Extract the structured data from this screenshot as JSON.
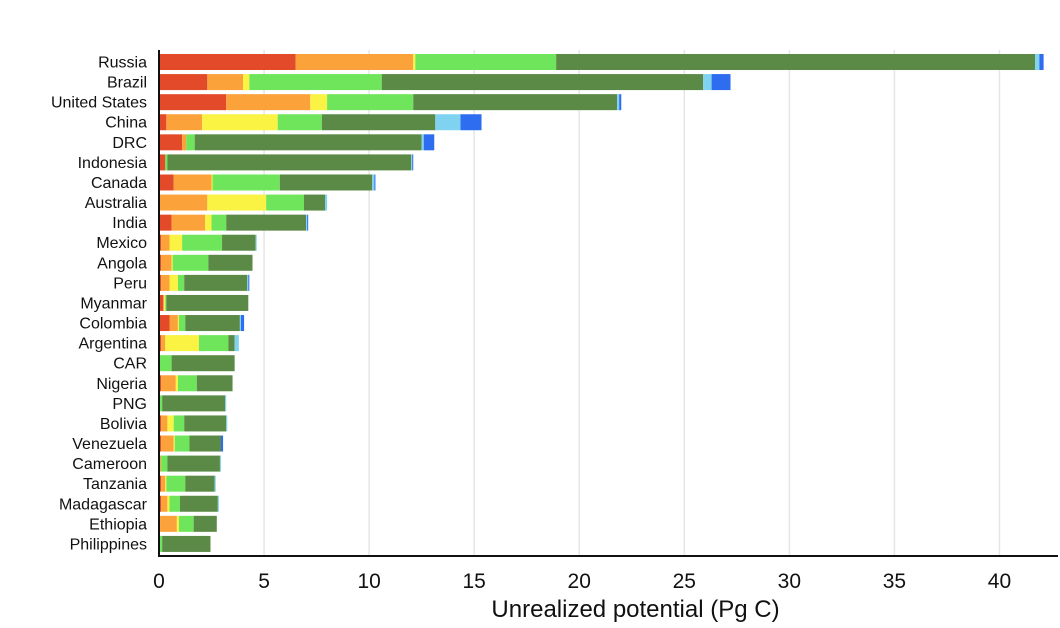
{
  "chart_data": {
    "type": "bar",
    "orientation": "horizontal",
    "stacked": true,
    "title": "",
    "xlabel": "Unrealized potential (Pg C)",
    "ylabel": "",
    "xlim": [
      0,
      42.5
    ],
    "x_ticks": [
      0,
      5,
      10,
      15,
      20,
      25,
      30,
      35,
      40
    ],
    "x_tick_labels": [
      "0",
      "5",
      "10",
      "15",
      "20",
      "25",
      "30",
      "35",
      "40"
    ],
    "grid": "vertical",
    "legend": "none",
    "categories": [
      "Russia",
      "Brazil",
      "United States",
      "China",
      "DRC",
      "Indonesia",
      "Canada",
      "Australia",
      "India",
      "Mexico",
      "Angola",
      "Peru",
      "Myanmar",
      "Colombia",
      "Argentina",
      "CAR",
      "Nigeria",
      "PNG",
      "Bolivia",
      "Venezuela",
      "Cameroon",
      "Tanzania",
      "Madagascar",
      "Ethiopia",
      "Philippines"
    ],
    "series": [
      {
        "color": "#e34a2a",
        "values": [
          6.5,
          2.3,
          3.2,
          0.35,
          1.1,
          0.3,
          0.7,
          0.0,
          0.6,
          0.1,
          0.1,
          0.1,
          0.2,
          0.5,
          0.1,
          0.0,
          0.1,
          0.05,
          0.1,
          0.1,
          0.05,
          0.1,
          0.1,
          0.05,
          0.05
        ]
      },
      {
        "color": "#fca23a",
        "values": [
          5.6,
          1.7,
          4.0,
          1.7,
          0.2,
          0.0,
          1.8,
          2.3,
          1.6,
          0.4,
          0.5,
          0.4,
          0.05,
          0.4,
          0.2,
          0.0,
          0.7,
          0.0,
          0.3,
          0.6,
          0.05,
          0.2,
          0.3,
          0.8,
          0.0
        ]
      },
      {
        "color": "#faf344",
        "values": [
          0.1,
          0.3,
          0.8,
          3.6,
          0.0,
          0.0,
          0.05,
          2.8,
          0.3,
          0.6,
          0.05,
          0.4,
          0.05,
          0.05,
          1.6,
          0.0,
          0.1,
          0.0,
          0.3,
          0.05,
          0.0,
          0.05,
          0.1,
          0.1,
          0.0
        ]
      },
      {
        "color": "#6ee55a",
        "values": [
          6.7,
          6.3,
          4.1,
          2.1,
          0.4,
          0.1,
          3.2,
          1.8,
          0.7,
          1.9,
          1.7,
          0.3,
          0.05,
          0.3,
          1.4,
          0.6,
          0.9,
          0.1,
          0.5,
          0.7,
          0.3,
          0.9,
          0.5,
          0.7,
          0.1
        ]
      },
      {
        "color": "#5a8a45",
        "values": [
          22.8,
          15.3,
          9.7,
          5.4,
          10.8,
          11.6,
          4.4,
          1.0,
          3.8,
          1.6,
          2.1,
          3.0,
          3.9,
          2.6,
          0.3,
          3.0,
          1.7,
          3.0,
          2.0,
          1.5,
          2.5,
          1.4,
          1.8,
          1.1,
          2.3
        ]
      },
      {
        "color": "#7fd3f0",
        "values": [
          0.2,
          0.4,
          0.1,
          1.2,
          0.1,
          0.05,
          0.1,
          0.1,
          0.05,
          0.05,
          0.0,
          0.05,
          0.0,
          0.05,
          0.2,
          0.0,
          0.0,
          0.05,
          0.05,
          0.0,
          0.05,
          0.05,
          0.05,
          0.0,
          0.0
        ]
      },
      {
        "color": "#2f6df0",
        "values": [
          0.2,
          0.9,
          0.1,
          1.0,
          0.5,
          0.05,
          0.05,
          0.0,
          0.05,
          0.0,
          0.0,
          0.05,
          0.0,
          0.15,
          0.0,
          0.0,
          0.0,
          0.0,
          0.0,
          0.1,
          0.0,
          0.0,
          0.0,
          0.0,
          0.0
        ]
      }
    ]
  }
}
